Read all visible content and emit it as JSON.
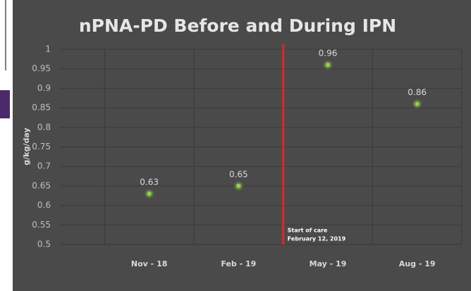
{
  "chart_data": {
    "type": "scatter",
    "title": "nPNA-PD Before and During IPN",
    "y_label": "g/kg/day",
    "categories": [
      "Nov - 18",
      "Feb - 19",
      "May - 19",
      "Aug - 19"
    ],
    "values": [
      0.63,
      0.65,
      0.96,
      0.86
    ],
    "color": "#92d050",
    "ylim": [
      0.5,
      1
    ],
    "yticks": [
      0.5,
      0.55,
      0.6,
      0.65,
      0.7,
      0.75,
      0.8,
      0.85,
      0.9,
      0.95,
      1
    ],
    "grid": true,
    "annotation": {
      "lines": [
        "Start of care",
        "February 12, 2019"
      ],
      "color": "#e0262a"
    }
  }
}
